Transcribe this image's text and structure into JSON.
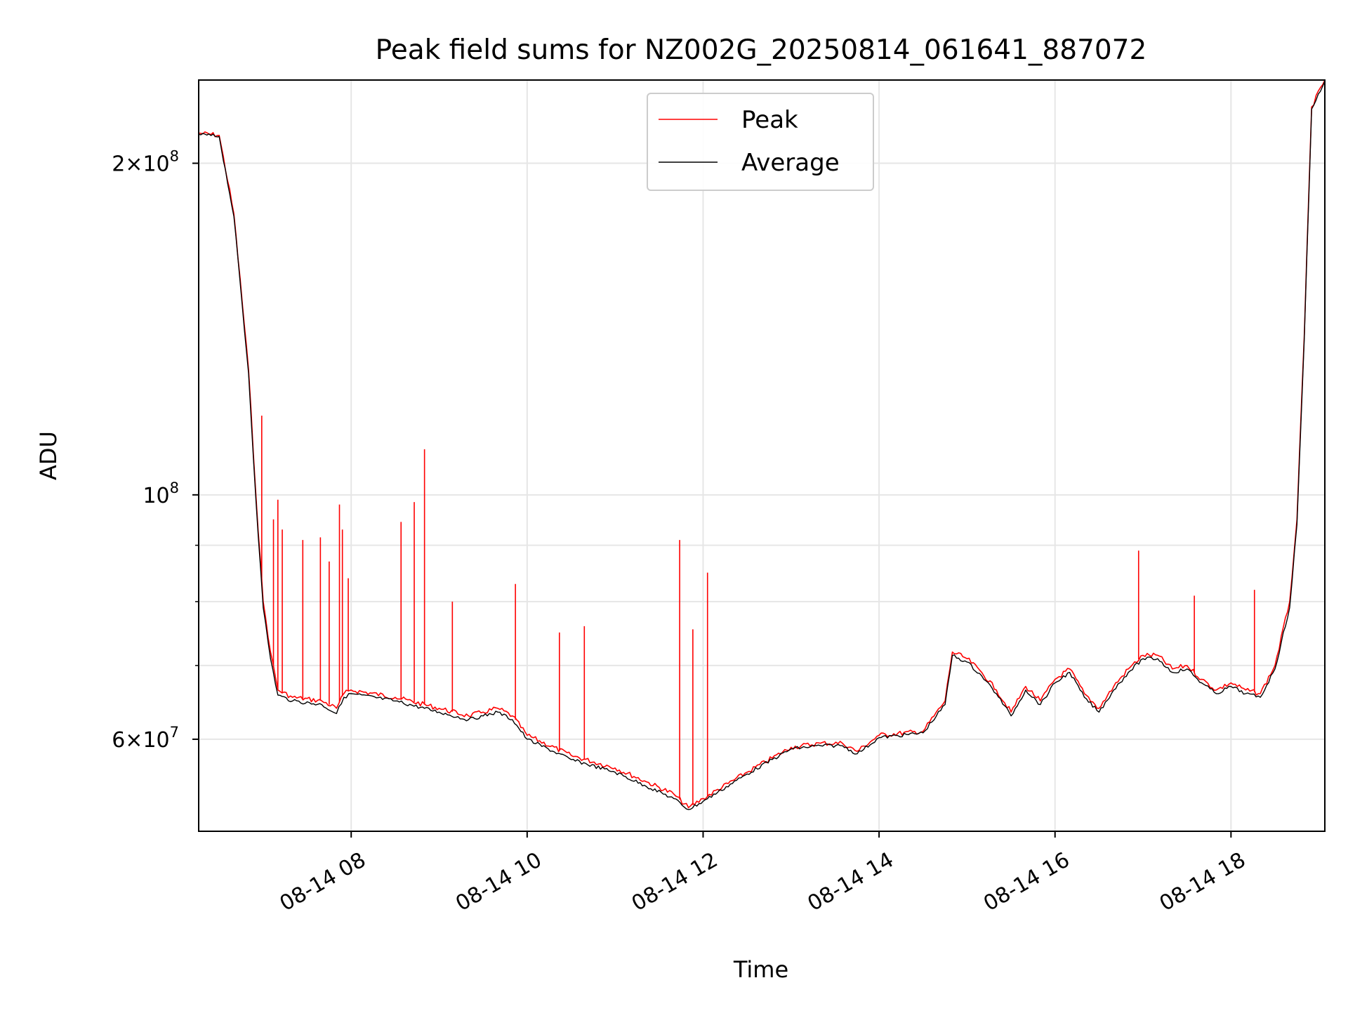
{
  "chart_data": {
    "type": "line",
    "title": "Peak field sums for NZ002G_20250814_061641_887072",
    "xlabel": "Time",
    "ylabel": "ADU",
    "y_scale": "log",
    "ylim": [
      49500000,
      238000000
    ],
    "xlim": [
      "2025-08-14 06:16",
      "2025-08-14 19:04"
    ],
    "grid": true,
    "legend_position": "upper center",
    "x_ticks": [
      "08-14 08",
      "08-14 10",
      "08-14 12",
      "08-14 14",
      "08-14 16",
      "08-14 18"
    ],
    "y_ticks_major": [
      {
        "label_mantissa": "10",
        "label_exp": "8",
        "value": 100000000
      },
      {
        "label_mantissa": "2×10",
        "label_exp": "8",
        "value": 200000000
      },
      {
        "label_mantissa": "6×10",
        "label_exp": "7",
        "value": 60000000
      }
    ],
    "y_ticks_minor": [
      70000000,
      80000000,
      90000000
    ],
    "x": [
      "2025-08-14 06:16",
      "2025-08-14 06:30",
      "2025-08-14 06:40",
      "2025-08-14 06:50",
      "2025-08-14 06:55",
      "2025-08-14 07:00",
      "2025-08-14 07:05",
      "2025-08-14 07:10",
      "2025-08-14 07:20",
      "2025-08-14 07:40",
      "2025-08-14 07:50",
      "2025-08-14 07:55",
      "2025-08-14 08:00",
      "2025-08-14 08:30",
      "2025-08-14 09:00",
      "2025-08-14 09:20",
      "2025-08-14 09:30",
      "2025-08-14 09:40",
      "2025-08-14 09:50",
      "2025-08-14 10:00",
      "2025-08-14 10:30",
      "2025-08-14 11:00",
      "2025-08-14 11:20",
      "2025-08-14 11:40",
      "2025-08-14 11:50",
      "2025-08-14 12:00",
      "2025-08-14 12:30",
      "2025-08-14 13:00",
      "2025-08-14 13:20",
      "2025-08-14 13:35",
      "2025-08-14 13:45",
      "2025-08-14 14:00",
      "2025-08-14 14:30",
      "2025-08-14 14:45",
      "2025-08-14 14:50",
      "2025-08-14 15:00",
      "2025-08-14 15:10",
      "2025-08-14 15:20",
      "2025-08-14 15:30",
      "2025-08-14 15:40",
      "2025-08-14 15:50",
      "2025-08-14 16:00",
      "2025-08-14 16:10",
      "2025-08-14 16:20",
      "2025-08-14 16:30",
      "2025-08-14 16:40",
      "2025-08-14 16:50",
      "2025-08-14 17:00",
      "2025-08-14 17:10",
      "2025-08-14 17:20",
      "2025-08-14 17:30",
      "2025-08-14 17:40",
      "2025-08-14 17:50",
      "2025-08-14 18:00",
      "2025-08-14 18:10",
      "2025-08-14 18:20",
      "2025-08-14 18:30",
      "2025-08-14 18:40",
      "2025-08-14 18:45",
      "2025-08-14 18:50",
      "2025-08-14 18:55",
      "2025-08-14 19:04"
    ],
    "series": [
      {
        "name": "Peak",
        "color": "#ff0000",
        "values": [
          213000000,
          212000000,
          180000000,
          130000000,
          100000000,
          80000000,
          72000000,
          66500000,
          65500000,
          65000000,
          64000000,
          66000000,
          66500000,
          65500000,
          64000000,
          63000000,
          63500000,
          64000000,
          63000000,
          60500000,
          58000000,
          56500000,
          55000000,
          53500000,
          52000000,
          53000000,
          56000000,
          59000000,
          59500000,
          59500000,
          58500000,
          60500000,
          61000000,
          65000000,
          72000000,
          71000000,
          69000000,
          66500000,
          63500000,
          67000000,
          65000000,
          68000000,
          69500000,
          66000000,
          64000000,
          67000000,
          69500000,
          71500000,
          71500000,
          69500000,
          70000000,
          68000000,
          66500000,
          67500000,
          66500000,
          66000000,
          70000000,
          80000000,
          95000000,
          140000000,
          225000000,
          238000000
        ],
        "spikes": [
          {
            "x": "2025-08-14 06:59",
            "value": 118000000
          },
          {
            "x": "2025-08-14 07:07",
            "value": 95000000
          },
          {
            "x": "2025-08-14 07:10",
            "value": 99000000
          },
          {
            "x": "2025-08-14 07:13",
            "value": 93000000
          },
          {
            "x": "2025-08-14 07:27",
            "value": 91000000
          },
          {
            "x": "2025-08-14 07:39",
            "value": 91500000
          },
          {
            "x": "2025-08-14 07:45",
            "value": 87000000
          },
          {
            "x": "2025-08-14 07:52",
            "value": 98000000
          },
          {
            "x": "2025-08-14 07:54",
            "value": 93000000
          },
          {
            "x": "2025-08-14 07:58",
            "value": 84000000
          },
          {
            "x": "2025-08-14 08:34",
            "value": 94500000
          },
          {
            "x": "2025-08-14 08:43",
            "value": 98500000
          },
          {
            "x": "2025-08-14 08:50",
            "value": 110000000
          },
          {
            "x": "2025-08-14 09:09",
            "value": 80000000
          },
          {
            "x": "2025-08-14 09:52",
            "value": 83000000
          },
          {
            "x": "2025-08-14 10:22",
            "value": 75000000
          },
          {
            "x": "2025-08-14 10:39",
            "value": 76000000
          },
          {
            "x": "2025-08-14 11:44",
            "value": 91000000
          },
          {
            "x": "2025-08-14 11:53",
            "value": 75500000
          },
          {
            "x": "2025-08-14 12:03",
            "value": 85000000
          },
          {
            "x": "2025-08-14 16:57",
            "value": 89000000
          },
          {
            "x": "2025-08-14 17:35",
            "value": 81000000
          },
          {
            "x": "2025-08-14 18:16",
            "value": 82000000
          }
        ]
      },
      {
        "name": "Average",
        "color": "#000000",
        "values": [
          212500000,
          211500000,
          179000000,
          129000000,
          99000000,
          79000000,
          71000000,
          65800000,
          65000000,
          64500000,
          63300000,
          65500000,
          66000000,
          65000000,
          63500000,
          62500000,
          63000000,
          63500000,
          62500000,
          60000000,
          57500000,
          56000000,
          54500000,
          53000000,
          51800000,
          52700000,
          55800000,
          58800000,
          59200000,
          59200000,
          58200000,
          60200000,
          60800000,
          64500000,
          71500000,
          70500000,
          68500000,
          66000000,
          63000000,
          66500000,
          64500000,
          67500000,
          69000000,
          65500000,
          63500000,
          66500000,
          69000000,
          71000000,
          71000000,
          69000000,
          69500000,
          67500000,
          66000000,
          67000000,
          66000000,
          65500000,
          69500000,
          79000000,
          94000000,
          139000000,
          224000000,
          237500000
        ]
      }
    ]
  }
}
